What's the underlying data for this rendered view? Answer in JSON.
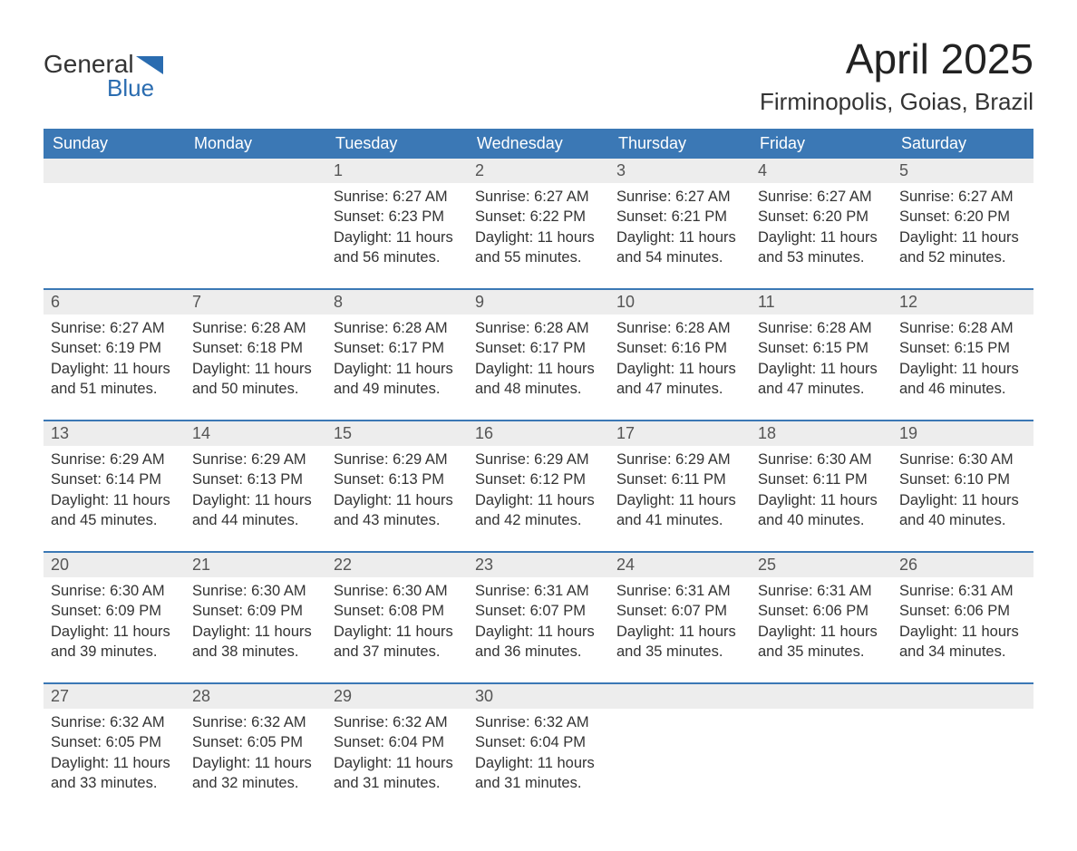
{
  "logo": {
    "general": "General",
    "blue": "Blue"
  },
  "title": "April 2025",
  "location": "Firminopolis, Goias, Brazil",
  "colors": {
    "header_bg": "#3b78b5",
    "divider": "#3b78b5",
    "date_bg": "#ededed",
    "page_bg": "#ffffff",
    "text": "#333333",
    "logo_blue": "#2a6cb0"
  },
  "day_headers": [
    "Sunday",
    "Monday",
    "Tuesday",
    "Wednesday",
    "Thursday",
    "Friday",
    "Saturday"
  ],
  "labels": {
    "sunrise": "Sunrise:",
    "sunset": "Sunset:",
    "daylight": "Daylight:"
  },
  "weeks": [
    [
      null,
      null,
      {
        "date": "1",
        "sunrise": "6:27 AM",
        "sunset": "6:23 PM",
        "daylight": "11 hours and 56 minutes."
      },
      {
        "date": "2",
        "sunrise": "6:27 AM",
        "sunset": "6:22 PM",
        "daylight": "11 hours and 55 minutes."
      },
      {
        "date": "3",
        "sunrise": "6:27 AM",
        "sunset": "6:21 PM",
        "daylight": "11 hours and 54 minutes."
      },
      {
        "date": "4",
        "sunrise": "6:27 AM",
        "sunset": "6:20 PM",
        "daylight": "11 hours and 53 minutes."
      },
      {
        "date": "5",
        "sunrise": "6:27 AM",
        "sunset": "6:20 PM",
        "daylight": "11 hours and 52 minutes."
      }
    ],
    [
      {
        "date": "6",
        "sunrise": "6:27 AM",
        "sunset": "6:19 PM",
        "daylight": "11 hours and 51 minutes."
      },
      {
        "date": "7",
        "sunrise": "6:28 AM",
        "sunset": "6:18 PM",
        "daylight": "11 hours and 50 minutes."
      },
      {
        "date": "8",
        "sunrise": "6:28 AM",
        "sunset": "6:17 PM",
        "daylight": "11 hours and 49 minutes."
      },
      {
        "date": "9",
        "sunrise": "6:28 AM",
        "sunset": "6:17 PM",
        "daylight": "11 hours and 48 minutes."
      },
      {
        "date": "10",
        "sunrise": "6:28 AM",
        "sunset": "6:16 PM",
        "daylight": "11 hours and 47 minutes."
      },
      {
        "date": "11",
        "sunrise": "6:28 AM",
        "sunset": "6:15 PM",
        "daylight": "11 hours and 47 minutes."
      },
      {
        "date": "12",
        "sunrise": "6:28 AM",
        "sunset": "6:15 PM",
        "daylight": "11 hours and 46 minutes."
      }
    ],
    [
      {
        "date": "13",
        "sunrise": "6:29 AM",
        "sunset": "6:14 PM",
        "daylight": "11 hours and 45 minutes."
      },
      {
        "date": "14",
        "sunrise": "6:29 AM",
        "sunset": "6:13 PM",
        "daylight": "11 hours and 44 minutes."
      },
      {
        "date": "15",
        "sunrise": "6:29 AM",
        "sunset": "6:13 PM",
        "daylight": "11 hours and 43 minutes."
      },
      {
        "date": "16",
        "sunrise": "6:29 AM",
        "sunset": "6:12 PM",
        "daylight": "11 hours and 42 minutes."
      },
      {
        "date": "17",
        "sunrise": "6:29 AM",
        "sunset": "6:11 PM",
        "daylight": "11 hours and 41 minutes."
      },
      {
        "date": "18",
        "sunrise": "6:30 AM",
        "sunset": "6:11 PM",
        "daylight": "11 hours and 40 minutes."
      },
      {
        "date": "19",
        "sunrise": "6:30 AM",
        "sunset": "6:10 PM",
        "daylight": "11 hours and 40 minutes."
      }
    ],
    [
      {
        "date": "20",
        "sunrise": "6:30 AM",
        "sunset": "6:09 PM",
        "daylight": "11 hours and 39 minutes."
      },
      {
        "date": "21",
        "sunrise": "6:30 AM",
        "sunset": "6:09 PM",
        "daylight": "11 hours and 38 minutes."
      },
      {
        "date": "22",
        "sunrise": "6:30 AM",
        "sunset": "6:08 PM",
        "daylight": "11 hours and 37 minutes."
      },
      {
        "date": "23",
        "sunrise": "6:31 AM",
        "sunset": "6:07 PM",
        "daylight": "11 hours and 36 minutes."
      },
      {
        "date": "24",
        "sunrise": "6:31 AM",
        "sunset": "6:07 PM",
        "daylight": "11 hours and 35 minutes."
      },
      {
        "date": "25",
        "sunrise": "6:31 AM",
        "sunset": "6:06 PM",
        "daylight": "11 hours and 35 minutes."
      },
      {
        "date": "26",
        "sunrise": "6:31 AM",
        "sunset": "6:06 PM",
        "daylight": "11 hours and 34 minutes."
      }
    ],
    [
      {
        "date": "27",
        "sunrise": "6:32 AM",
        "sunset": "6:05 PM",
        "daylight": "11 hours and 33 minutes."
      },
      {
        "date": "28",
        "sunrise": "6:32 AM",
        "sunset": "6:05 PM",
        "daylight": "11 hours and 32 minutes."
      },
      {
        "date": "29",
        "sunrise": "6:32 AM",
        "sunset": "6:04 PM",
        "daylight": "11 hours and 31 minutes."
      },
      {
        "date": "30",
        "sunrise": "6:32 AM",
        "sunset": "6:04 PM",
        "daylight": "11 hours and 31 minutes."
      },
      null,
      null,
      null
    ]
  ]
}
